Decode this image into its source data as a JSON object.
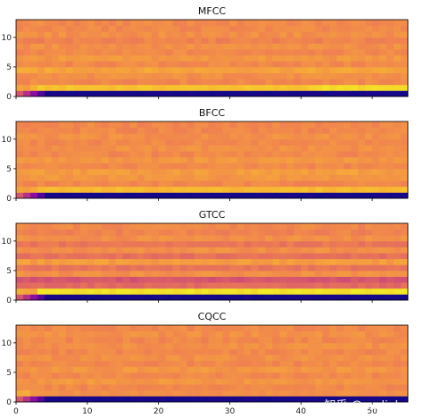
{
  "chart_data": [
    {
      "type": "heatmap",
      "title": "MFCC",
      "xlim": [
        0,
        55
      ],
      "ylim": [
        0,
        13
      ],
      "yticks": [
        "0",
        "5",
        "10"
      ],
      "rows": 13,
      "cols": 55,
      "base_row": [
        0.02,
        0.88,
        0.72,
        0.74,
        0.8,
        0.72,
        0.76,
        0.72,
        0.74,
        0.7,
        0.74,
        0.72,
        0.72
      ]
    },
    {
      "type": "heatmap",
      "title": "BFCC",
      "xlim": [
        0,
        55
      ],
      "ylim": [
        0,
        13
      ],
      "yticks": [
        "0",
        "5",
        "10"
      ],
      "rows": 13,
      "cols": 55,
      "base_row": [
        0.02,
        0.86,
        0.72,
        0.76,
        0.78,
        0.72,
        0.76,
        0.72,
        0.74,
        0.72,
        0.74,
        0.72,
        0.72
      ]
    },
    {
      "type": "heatmap",
      "title": "GTCC",
      "xlim": [
        0,
        55
      ],
      "ylim": [
        0,
        13
      ],
      "yticks": [
        "0",
        "5",
        "10"
      ],
      "rows": 13,
      "cols": 55,
      "base_row": [
        0.03,
        0.95,
        0.62,
        0.55,
        0.74,
        0.66,
        0.78,
        0.64,
        0.74,
        0.66,
        0.74,
        0.7,
        0.72
      ]
    },
    {
      "type": "heatmap",
      "title": "CQCC",
      "xlim": [
        0,
        55
      ],
      "ylim": [
        0,
        13
      ],
      "yticks": [
        "0",
        "5",
        "10"
      ],
      "rows": 13,
      "cols": 55,
      "base_row": [
        0.02,
        0.74,
        0.72,
        0.76,
        0.72,
        0.76,
        0.72,
        0.74,
        0.72,
        0.74,
        0.72,
        0.74,
        0.72
      ]
    }
  ],
  "x_axis": {
    "ticks": [
      "0",
      "10",
      "20",
      "30",
      "40",
      "50"
    ]
  },
  "colormap": "plasma",
  "watermark": "知乎 @audioLab"
}
